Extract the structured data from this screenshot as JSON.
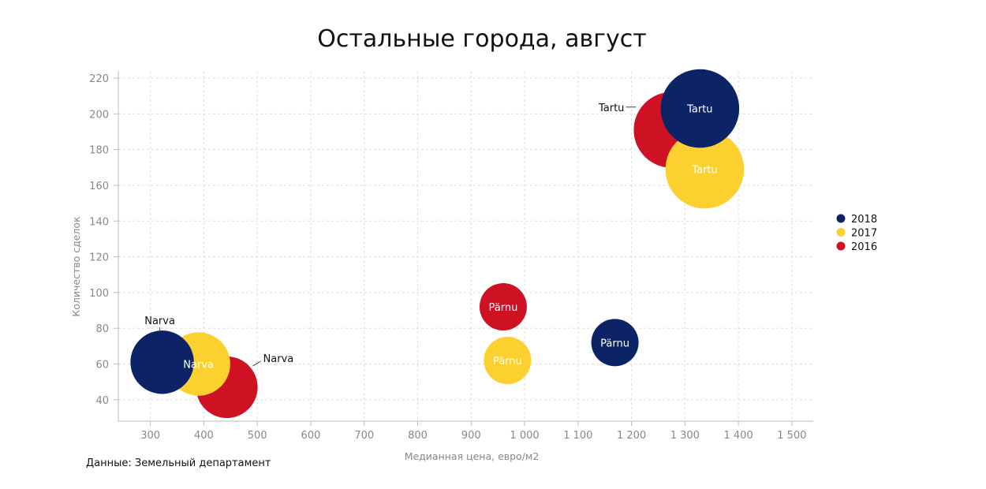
{
  "chart_data": {
    "type": "scatter",
    "title": "Остальные города, август",
    "xlabel": "Медианная цена, евро/м2",
    "ylabel": "Количество сделок",
    "xlim": [
      240,
      1540
    ],
    "ylim": [
      28,
      224
    ],
    "x_ticks": [
      300,
      400,
      500,
      600,
      700,
      800,
      900,
      1000,
      1100,
      1200,
      1300,
      1400,
      1500
    ],
    "x_tick_labels": [
      "300",
      "400",
      "500",
      "600",
      "700",
      "800",
      "900",
      "1 000",
      "1 100",
      "1 200",
      "1 300",
      "1 400",
      "1 500"
    ],
    "y_ticks": [
      40,
      60,
      80,
      100,
      120,
      140,
      160,
      180,
      200,
      220
    ],
    "y_tick_labels": [
      "40",
      "60",
      "80",
      "100",
      "120",
      "140",
      "160",
      "180",
      "200",
      "220"
    ],
    "grid": true,
    "legend_position": "right",
    "series": [
      {
        "name": "2016",
        "color": "#cf1124",
        "points": [
          {
            "label": "Narva",
            "x": 443,
            "y": 47,
            "size": 65,
            "label_position": "right"
          },
          {
            "label": "Pärnu",
            "x": 960,
            "y": 92,
            "size": 50,
            "label_position": "inside"
          },
          {
            "label": "Tartu",
            "x": 1275,
            "y": 191,
            "size": 80,
            "label_position": "left"
          }
        ]
      },
      {
        "name": "2017",
        "color": "#fcd12f",
        "points": [
          {
            "label": "Narva",
            "x": 390,
            "y": 60,
            "size": 67,
            "label_position": "inside"
          },
          {
            "label": "Pärnu",
            "x": 968,
            "y": 62,
            "size": 50,
            "label_position": "inside"
          },
          {
            "label": "Tartu",
            "x": 1337,
            "y": 169,
            "size": 83,
            "label_position": "inside"
          }
        ]
      },
      {
        "name": "2018",
        "color": "#0c2466",
        "points": [
          {
            "label": "Narva",
            "x": 322,
            "y": 61,
            "size": 67,
            "label_position": "top"
          },
          {
            "label": "Pärnu",
            "x": 1169,
            "y": 72,
            "size": 50,
            "label_position": "inside"
          },
          {
            "label": "Tartu",
            "x": 1328,
            "y": 203,
            "size": 83,
            "label_position": "inside"
          }
        ]
      }
    ],
    "legend_order": [
      "2018",
      "2017",
      "2016"
    ]
  },
  "source_text": "Данные: Земельный департамент"
}
